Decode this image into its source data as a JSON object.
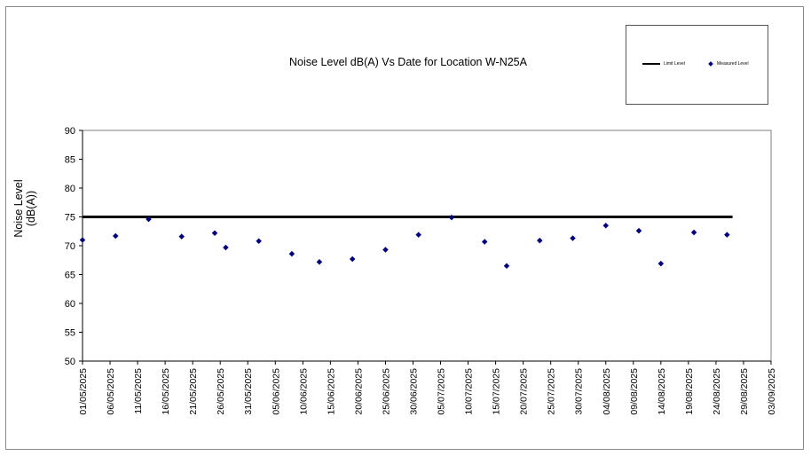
{
  "chart_data": {
    "type": "scatter",
    "title": "Noise Level dB(A) Vs Date for Location W-N25A",
    "xlabel": "",
    "ylabel": "Noise Level\n(dB(A))",
    "ylim": [
      50,
      90
    ],
    "yticks": [
      50,
      55,
      60,
      65,
      70,
      75,
      80,
      85,
      90
    ],
    "xlim": [
      "2025-05-01",
      "2025-09-03"
    ],
    "xticks": [
      "01/05/2025",
      "06/05/2025",
      "11/05/2025",
      "16/05/2025",
      "21/05/2025",
      "26/05/2025",
      "31/05/2025",
      "05/06/2025",
      "10/06/2025",
      "15/06/2025",
      "20/06/2025",
      "25/06/2025",
      "30/06/2025",
      "05/07/2025",
      "10/07/2025",
      "15/07/2025",
      "20/07/2025",
      "25/07/2025",
      "30/07/2025",
      "04/08/2025",
      "09/08/2025",
      "14/08/2025",
      "19/08/2025",
      "24/08/2025",
      "29/08/2025",
      "03/09/2025"
    ],
    "legend": [
      "Limit Level",
      "Measured Level"
    ],
    "legend_position": "top-right",
    "grid": false,
    "series": [
      {
        "name": "Limit Level",
        "kind": "line",
        "color": "#000000",
        "points": [
          {
            "x": "2025-05-01",
            "y": 75
          },
          {
            "x": "2025-08-27",
            "y": 75
          }
        ]
      },
      {
        "name": "Measured Level",
        "kind": "scatter",
        "color": "#000080",
        "points": [
          {
            "x": "2025-05-01",
            "y": 71.0
          },
          {
            "x": "2025-05-07",
            "y": 71.7
          },
          {
            "x": "2025-05-13",
            "y": 74.6
          },
          {
            "x": "2025-05-19",
            "y": 71.6
          },
          {
            "x": "2025-05-25",
            "y": 72.2
          },
          {
            "x": "2025-05-27",
            "y": 69.7
          },
          {
            "x": "2025-06-02",
            "y": 70.8
          },
          {
            "x": "2025-06-08",
            "y": 68.6
          },
          {
            "x": "2025-06-13",
            "y": 67.2
          },
          {
            "x": "2025-06-19",
            "y": 67.7
          },
          {
            "x": "2025-06-25",
            "y": 69.3
          },
          {
            "x": "2025-07-01",
            "y": 71.9
          },
          {
            "x": "2025-07-07",
            "y": 74.9
          },
          {
            "x": "2025-07-13",
            "y": 70.7
          },
          {
            "x": "2025-07-17",
            "y": 66.5
          },
          {
            "x": "2025-07-23",
            "y": 70.9
          },
          {
            "x": "2025-07-29",
            "y": 71.3
          },
          {
            "x": "2025-08-04",
            "y": 73.5
          },
          {
            "x": "2025-08-10",
            "y": 72.6
          },
          {
            "x": "2025-08-14",
            "y": 66.9
          },
          {
            "x": "2025-08-20",
            "y": 72.3
          },
          {
            "x": "2025-08-26",
            "y": 71.9
          }
        ]
      }
    ]
  }
}
